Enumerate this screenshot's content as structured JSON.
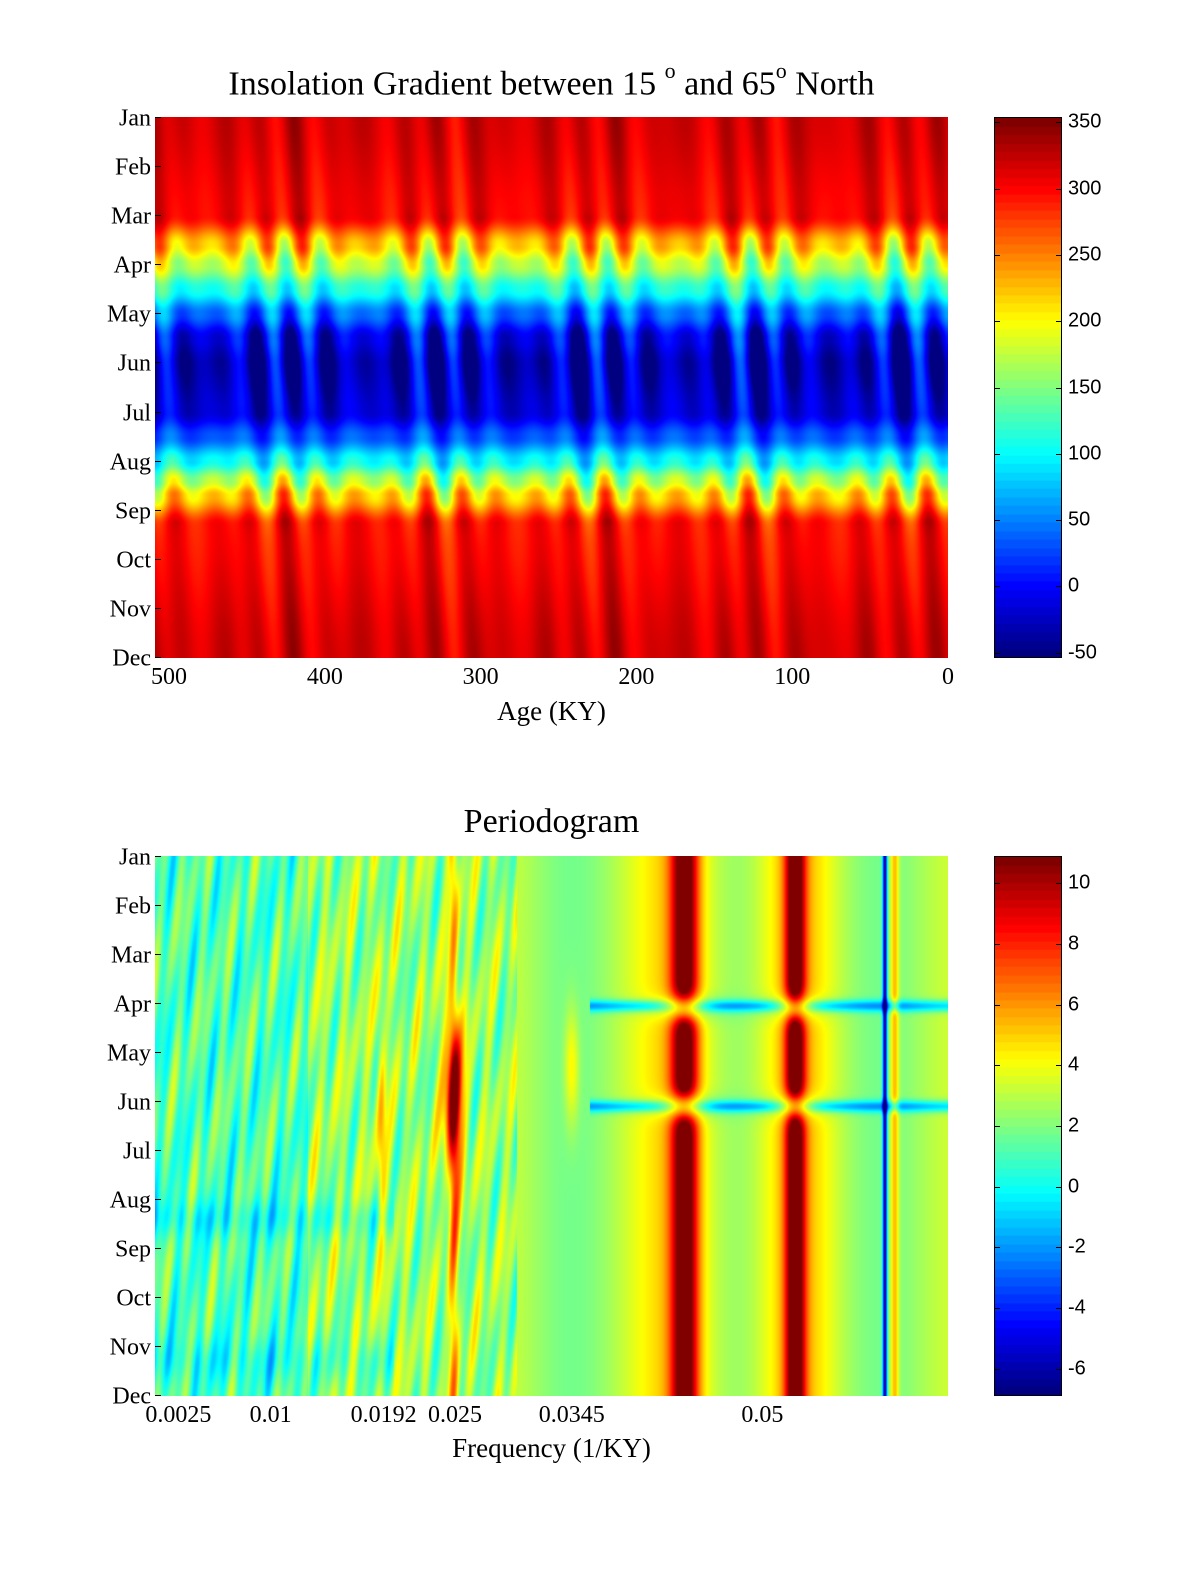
{
  "chart_data": [
    {
      "type": "heatmap",
      "title_parts": [
        "Insolation Gradient between 15 ",
        "o",
        " and 65",
        "o",
        " North"
      ],
      "xlabel": "Age (KY)",
      "ylabel": "",
      "x_ticks": [
        500,
        400,
        300,
        200,
        100,
        0
      ],
      "x_tick_labels": [
        "500",
        "400",
        "300",
        "200",
        "100",
        "0"
      ],
      "xlim": [
        509,
        0
      ],
      "y_tick_labels": [
        "Jan",
        "Feb",
        "Mar",
        "Apr",
        "May",
        "Jun",
        "Jul",
        "Aug",
        "Sep",
        "Oct",
        "Nov",
        "Dec"
      ],
      "colorbar": {
        "ticks": [
          350,
          300,
          250,
          200,
          150,
          100,
          50,
          0,
          -50
        ],
        "tick_labels": [
          "350",
          "300",
          "250",
          "200",
          "150",
          "100",
          "50",
          "0",
          "-50"
        ],
        "range": [
          -54,
          354
        ],
        "colormap": "jet"
      },
      "seasonal_profile": {
        "month_index": [
          0,
          2,
          2.6,
          3,
          3.5,
          4,
          4.5,
          5,
          6,
          6.5,
          7,
          7.4,
          7.7,
          8.3,
          11
        ],
        "value": [
          320,
          305,
          225,
          175,
          110,
          40,
          -15,
          -35,
          -20,
          30,
          100,
          170,
          220,
          300,
          320
        ]
      },
      "precession_period_ky": 23,
      "precession_amplitude": 35
    },
    {
      "type": "heatmap",
      "title": "Periodogram",
      "xlabel": "Frequency (1/KY)",
      "ylabel": "",
      "x_ticks": [
        0.0025,
        0.01,
        0.0192,
        0.025,
        0.0345,
        0.05
      ],
      "x_tick_labels": [
        "0.0025",
        "0.01",
        "0.0192",
        "0.025",
        "0.0345",
        "0.05"
      ],
      "xlim": [
        0.0006,
        0.0651
      ],
      "y_tick_labels": [
        "Jan",
        "Feb",
        "Mar",
        "Apr",
        "May",
        "Jun",
        "Jul",
        "Aug",
        "Sep",
        "Oct",
        "Nov",
        "Dec"
      ],
      "colorbar": {
        "ticks": [
          10,
          8,
          6,
          4,
          2,
          0,
          -2,
          -4,
          -6
        ],
        "tick_labels": [
          "10",
          "8",
          "6",
          "4",
          "2",
          "0",
          "-2",
          "-4",
          "-6"
        ],
        "range": [
          -6.9,
          10.9
        ],
        "colormap": "jet"
      },
      "spectral_peaks": [
        {
          "freq": 0.0437,
          "power": 10.5
        },
        {
          "freq": 0.0527,
          "power": 10.5
        },
        {
          "freq": 0.0249,
          "power": 9.5
        },
        {
          "freq": 0.0345,
          "power": 5
        },
        {
          "freq": 0.019,
          "power": 5
        },
        {
          "freq": 0.0608,
          "power": 6
        }
      ]
    }
  ]
}
